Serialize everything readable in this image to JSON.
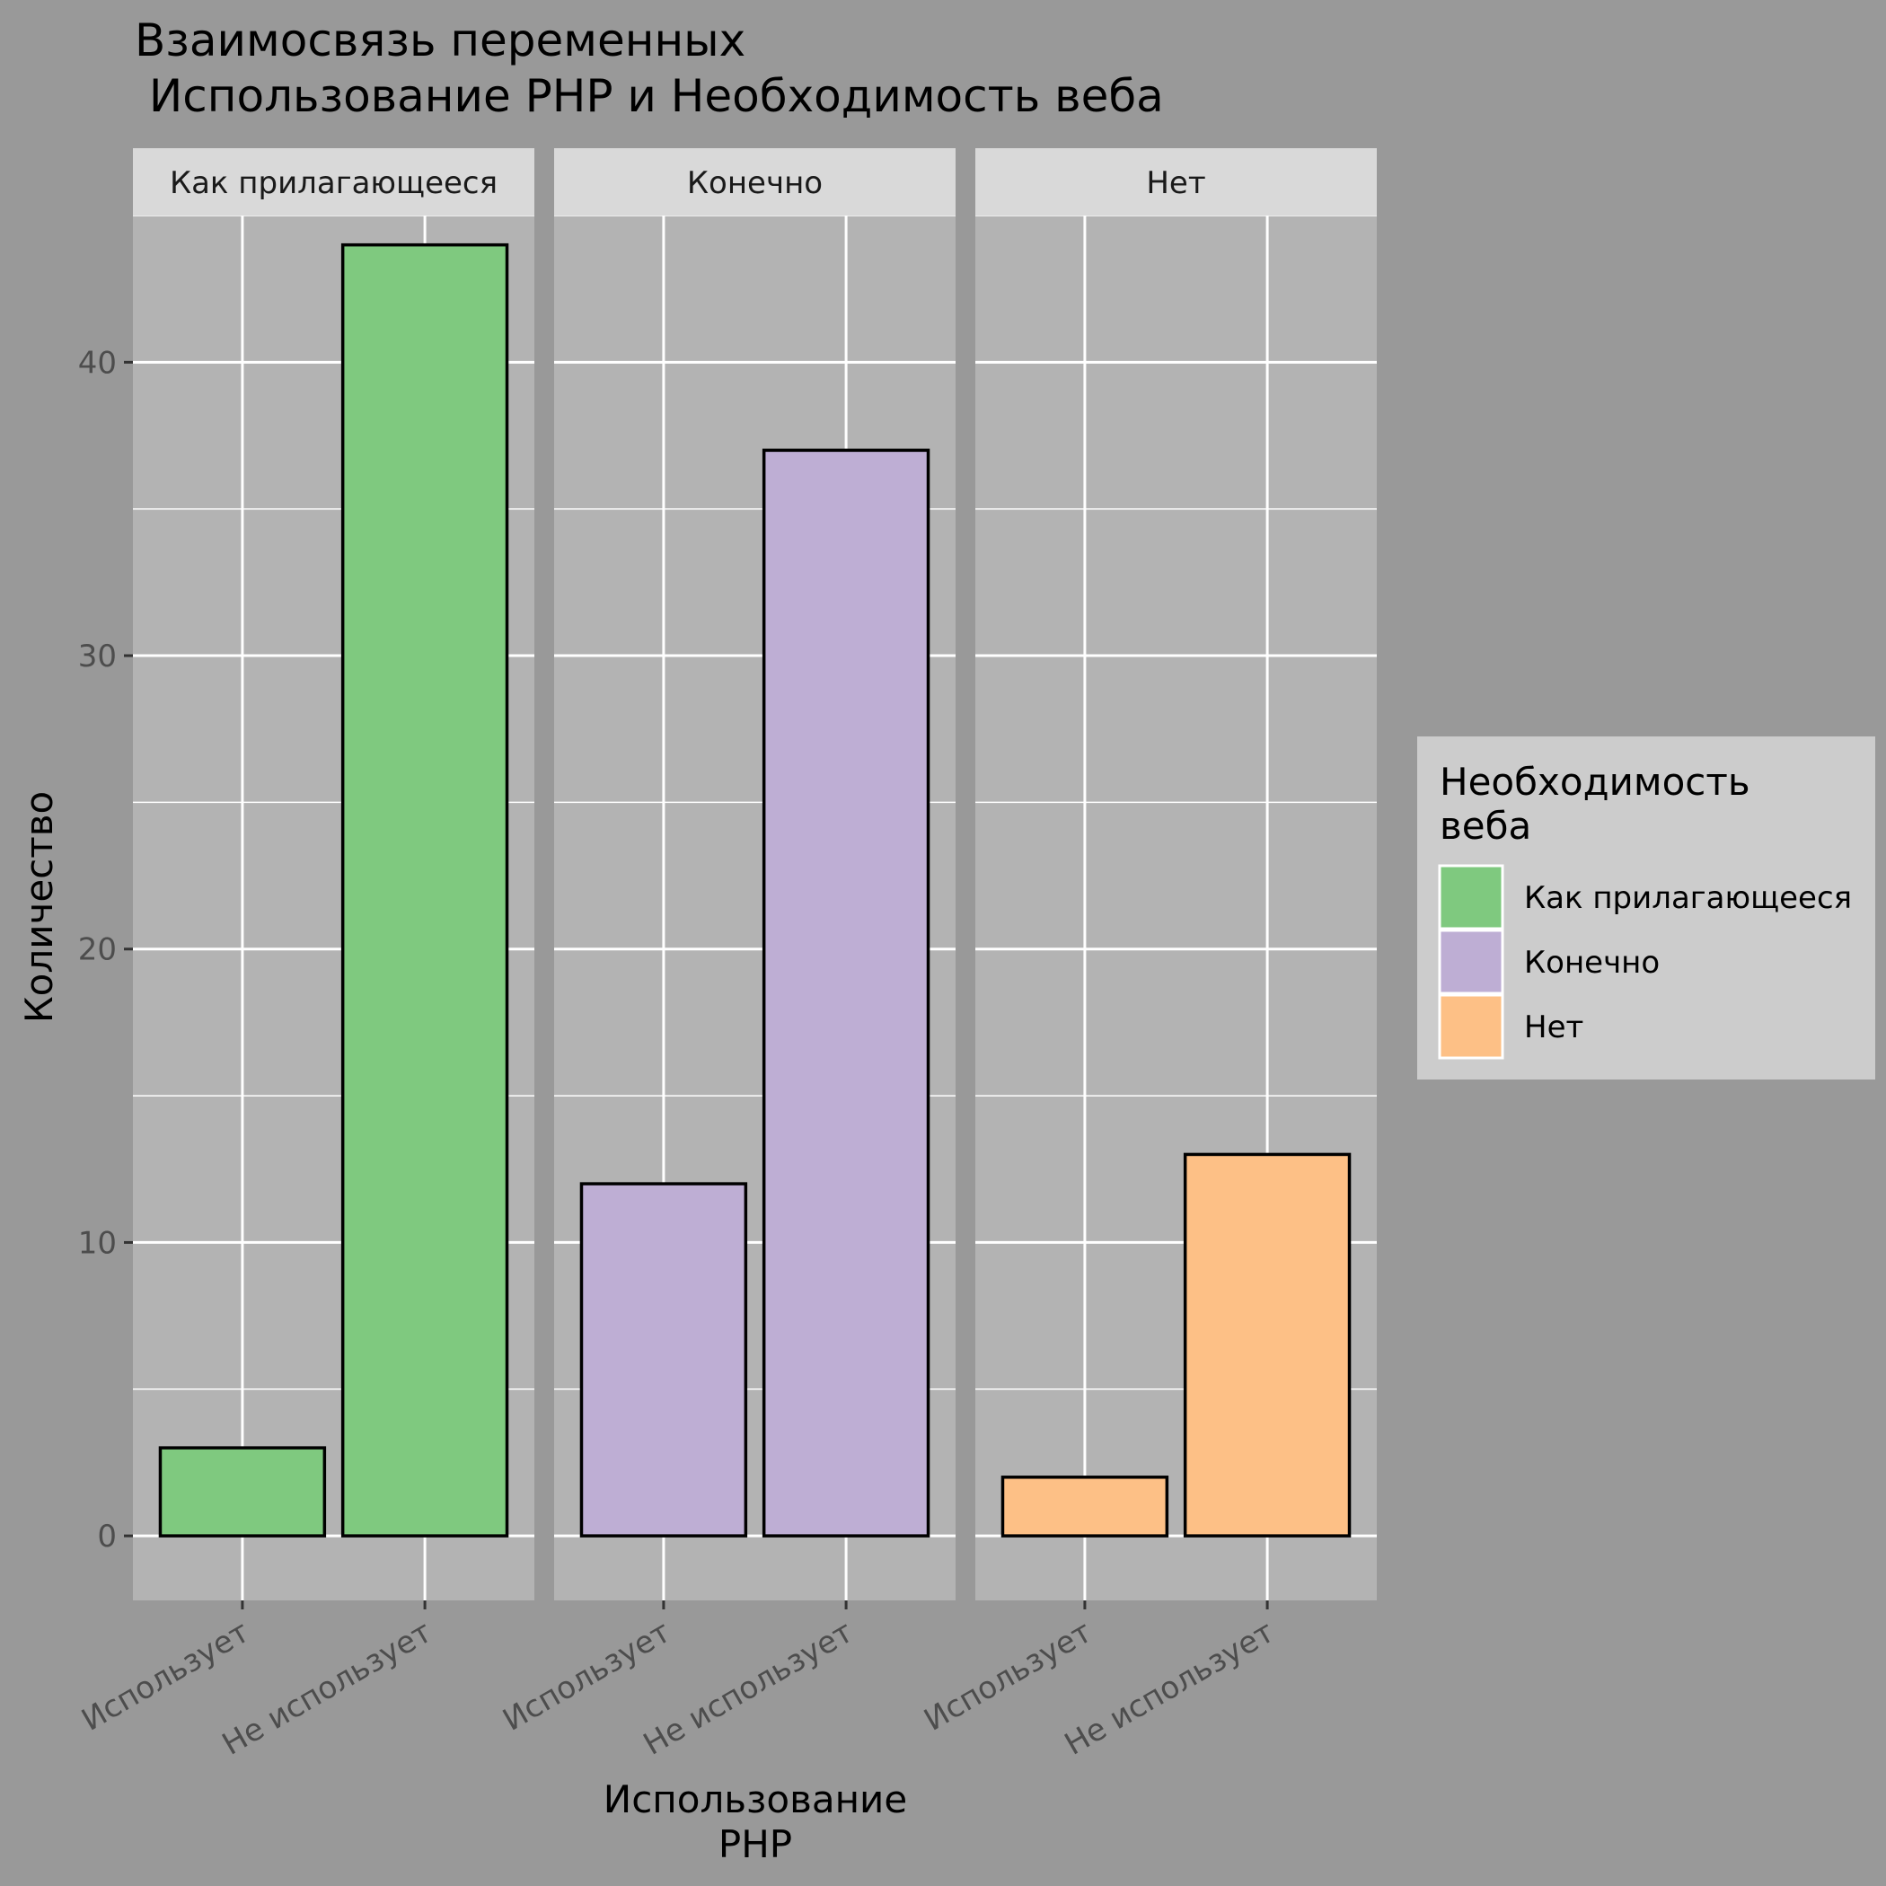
{
  "chart_data": {
    "type": "bar",
    "title_lines": [
      "Взаимосвязь переменных",
      " Использование PHP и Необходимость веба"
    ],
    "xlabel_lines": [
      "Использование",
      "PHP"
    ],
    "ylabel": "Количество",
    "ylim": [
      -2.2,
      45
    ],
    "yticks": [
      0,
      10,
      20,
      30,
      40
    ],
    "categories": [
      "Использует",
      "Не использует"
    ],
    "panels": [
      {
        "label": "Как прилагающееся",
        "values": [
          3,
          44
        ],
        "color": "#7fc97f"
      },
      {
        "label": "Конечно",
        "values": [
          12,
          37
        ],
        "color": "#beaed4"
      },
      {
        "label": "Нет",
        "values": [
          2,
          13
        ],
        "color": "#fdc086"
      }
    ],
    "legend": {
      "title_lines": [
        "Необходимость",
        "веба"
      ],
      "position": "right",
      "entries": [
        {
          "label": "Как прилагающееся",
          "color": "#7fc97f"
        },
        {
          "label": "Конечно",
          "color": "#beaed4"
        },
        {
          "label": "Нет",
          "color": "#fdc086"
        }
      ]
    },
    "grid": true
  }
}
